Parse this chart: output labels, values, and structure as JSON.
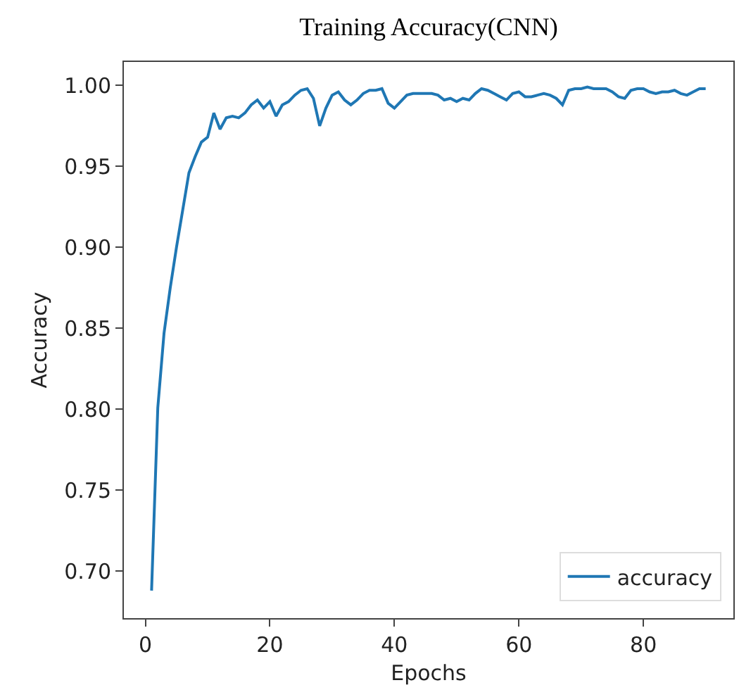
{
  "chart_data": {
    "type": "line",
    "title": "Training Accuracy(CNN)",
    "xlabel": "Epochs",
    "ylabel": "Accuracy",
    "x": [
      1,
      2,
      3,
      4,
      5,
      6,
      7,
      8,
      9,
      10,
      11,
      12,
      13,
      14,
      15,
      16,
      17,
      18,
      19,
      20,
      21,
      22,
      23,
      24,
      25,
      26,
      27,
      28,
      29,
      30,
      31,
      32,
      33,
      34,
      35,
      36,
      37,
      38,
      39,
      40,
      41,
      42,
      43,
      44,
      45,
      46,
      47,
      48,
      49,
      50,
      51,
      52,
      53,
      54,
      55,
      56,
      57,
      58,
      59,
      60,
      61,
      62,
      63,
      64,
      65,
      66,
      67,
      68,
      69,
      70,
      71,
      72,
      73,
      74,
      75,
      76,
      77,
      78,
      79,
      80,
      81,
      82,
      83,
      84,
      85,
      86,
      87,
      88,
      89,
      90
    ],
    "series": [
      {
        "name": "accuracy",
        "color": "#1f77b4",
        "values": [
          0.688,
          0.801,
          0.847,
          0.875,
          0.9,
          0.923,
          0.946,
          0.956,
          0.965,
          0.968,
          0.983,
          0.973,
          0.98,
          0.981,
          0.98,
          0.983,
          0.988,
          0.991,
          0.986,
          0.99,
          0.981,
          0.988,
          0.99,
          0.994,
          0.997,
          0.998,
          0.992,
          0.975,
          0.986,
          0.994,
          0.996,
          0.991,
          0.988,
          0.991,
          0.995,
          0.997,
          0.997,
          0.998,
          0.989,
          0.986,
          0.99,
          0.994,
          0.995,
          0.995,
          0.995,
          0.995,
          0.994,
          0.991,
          0.992,
          0.99,
          0.992,
          0.991,
          0.995,
          0.998,
          0.997,
          0.995,
          0.993,
          0.991,
          0.995,
          0.996,
          0.993,
          0.993,
          0.994,
          0.995,
          0.994,
          0.992,
          0.988,
          0.997,
          0.998,
          0.998,
          0.999,
          0.998,
          0.998,
          0.998,
          0.996,
          0.993,
          0.992,
          0.997,
          0.998,
          0.998,
          0.996,
          0.995,
          0.996,
          0.996,
          0.997,
          0.995,
          0.994,
          0.996,
          0.998,
          0.998
        ]
      }
    ],
    "xlim": [
      -3.45,
      94.45
    ],
    "ylim": [
      0.671,
      1.0145
    ],
    "xticks": [
      0,
      20,
      40,
      60,
      80
    ],
    "yticks": [
      {
        "value": 0.7,
        "label": "0.70"
      },
      {
        "value": 0.75,
        "label": "0.75"
      },
      {
        "value": 0.8,
        "label": "0.80"
      },
      {
        "value": 0.85,
        "label": "0.85"
      },
      {
        "value": 0.9,
        "label": "0.90"
      },
      {
        "value": 0.95,
        "label": "0.95"
      },
      {
        "value": 1.0,
        "label": "1.00"
      }
    ],
    "grid": false,
    "legend": "bottom right",
    "marker": "none",
    "line_style": "solid"
  }
}
